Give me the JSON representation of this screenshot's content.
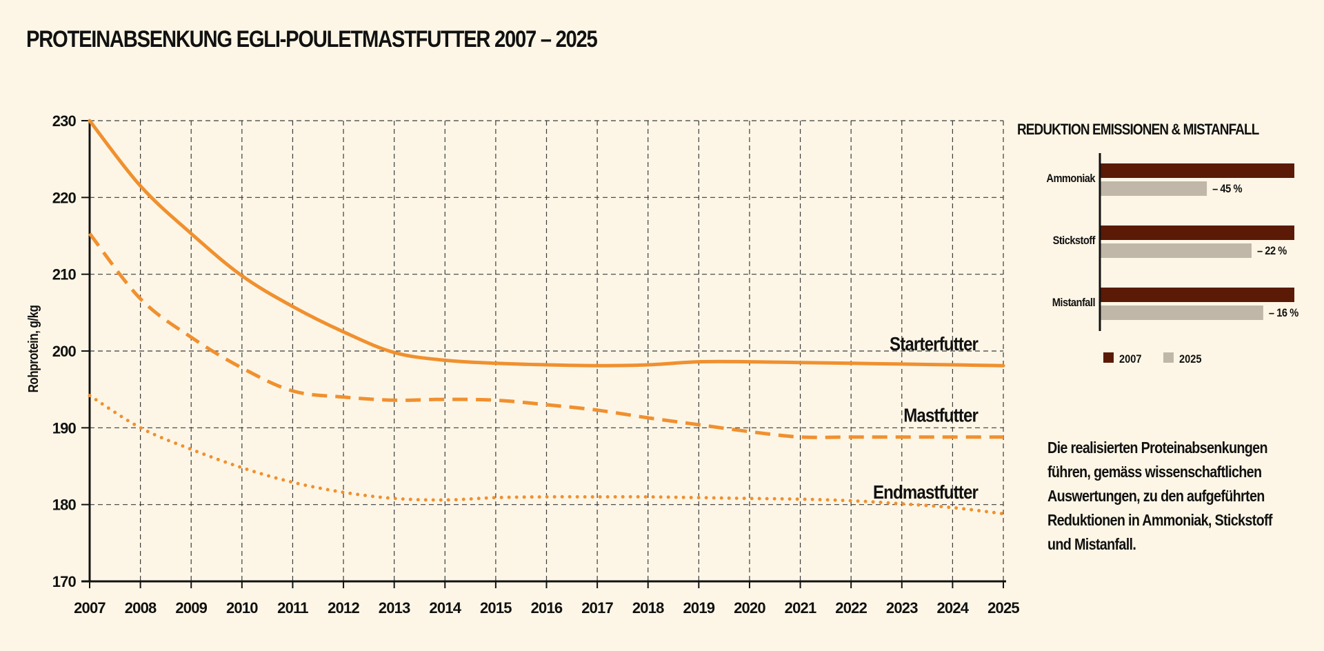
{
  "colors": {
    "background": "#fdf6e6",
    "line": "#f0902f",
    "grid": "#3a3a3a",
    "axis": "#111111",
    "bar_2007": "#5a1a06",
    "bar_2025": "#c0b7a8"
  },
  "chart_data": [
    {
      "type": "line",
      "title": "PROTEINABSENKUNG EGLI-POULETMASTFUTTER 2007 – 2025",
      "xlabel": "",
      "ylabel": "Rohprotein, g/kg",
      "ylim": [
        170,
        230
      ],
      "yticks": [
        170,
        180,
        190,
        200,
        210,
        220,
        230
      ],
      "x": [
        2007,
        2008,
        2009,
        2010,
        2011,
        2012,
        2013,
        2014,
        2015,
        2016,
        2017,
        2018,
        2019,
        2020,
        2021,
        2022,
        2023,
        2024,
        2025
      ],
      "grid": true,
      "series": [
        {
          "name": "Starterfutter",
          "style": "solid",
          "values": [
            230,
            221.5,
            215.3,
            209.8,
            205.8,
            202.5,
            199.8,
            198.8,
            198.4,
            198.2,
            198.1,
            198.2,
            198.6,
            198.6,
            198.5,
            198.4,
            198.3,
            198.2,
            198.1
          ]
        },
        {
          "name": "Mastfutter",
          "style": "dashed",
          "values": [
            215.3,
            206.8,
            201.8,
            197.8,
            194.8,
            194.0,
            193.6,
            193.7,
            193.6,
            193.0,
            192.3,
            191.3,
            190.4,
            189.5,
            188.8,
            188.8,
            188.8,
            188.8,
            188.8
          ]
        },
        {
          "name": "Endmastfutter",
          "style": "dotted",
          "values": [
            194.2,
            190.0,
            187.2,
            184.8,
            182.9,
            181.6,
            180.8,
            180.6,
            180.9,
            181.0,
            181.0,
            181.0,
            180.9,
            180.8,
            180.7,
            180.5,
            180.1,
            179.6,
            178.8
          ]
        }
      ]
    },
    {
      "type": "bar",
      "orientation": "horizontal",
      "title": "REDUKTION EMISSIONEN & MISTANFALL",
      "categories": [
        "Ammoniak",
        "Stickstoff",
        "Mistanfall"
      ],
      "series": [
        {
          "name": "2007",
          "values": [
            100,
            100,
            100
          ]
        },
        {
          "name": "2025",
          "values": [
            55,
            78,
            84
          ]
        }
      ],
      "value_labels": [
        "– 45 %",
        "– 22 %",
        "– 16 %"
      ],
      "legend": "bottom"
    }
  ],
  "note": "Die realisierten Proteinabsenkungen führen, gemäss wissenschaftlichen Auswertungen, zu den aufgeführten Reduktionen in Ammoniak, Stickstoff und Mistanfall."
}
